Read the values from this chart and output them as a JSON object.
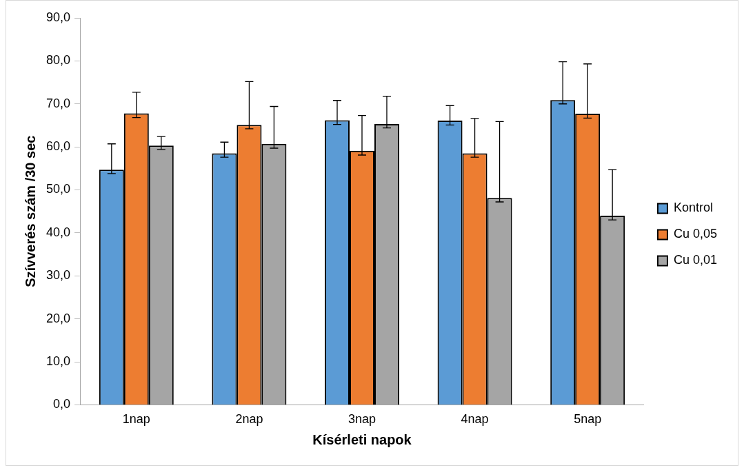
{
  "chart_data": {
    "type": "bar",
    "xlabel": "Kísérleti napok",
    "ylabel": "Szívverés szám /30 sec",
    "categories": [
      "1nap",
      "2nap",
      "3nap",
      "4nap",
      "5nap"
    ],
    "series": [
      {
        "name": "Kontrol",
        "color": "#5b9bd5",
        "values": [
          54.7,
          58.5,
          66.2,
          66.1,
          70.9
        ],
        "errors": [
          [
            53.8,
            60.7
          ],
          [
            57.6,
            61.1
          ],
          [
            65.2,
            70.8
          ],
          [
            65.1,
            69.6
          ],
          [
            70.0,
            79.8
          ]
        ]
      },
      {
        "name": "Cu 0,05",
        "color": "#ed7d31",
        "values": [
          67.8,
          65.1,
          59.1,
          58.5,
          67.7
        ],
        "errors": [
          [
            66.8,
            72.7
          ],
          [
            64.2,
            75.2
          ],
          [
            58.1,
            67.3
          ],
          [
            57.6,
            66.6
          ],
          [
            66.7,
            79.3
          ]
        ]
      },
      {
        "name": "Cu 0,01",
        "color": "#a5a5a5",
        "values": [
          60.3,
          60.7,
          65.3,
          48.1,
          44.0
        ],
        "errors": [
          [
            59.4,
            62.4
          ],
          [
            59.7,
            69.4
          ],
          [
            64.4,
            71.8
          ],
          [
            47.2,
            65.9
          ],
          [
            43.0,
            54.7
          ]
        ]
      }
    ],
    "ylim": [
      0,
      90
    ],
    "yticks": [
      {
        "value": 0,
        "label": "0,0"
      },
      {
        "value": 10,
        "label": "10,0"
      },
      {
        "value": 20,
        "label": "20,0"
      },
      {
        "value": 30,
        "label": "30,0"
      },
      {
        "value": 40,
        "label": "40,0"
      },
      {
        "value": 50,
        "label": "50,0"
      },
      {
        "value": 60,
        "label": "60,0"
      },
      {
        "value": 70,
        "label": "70,0"
      },
      {
        "value": 80,
        "label": "80,0"
      },
      {
        "value": 90,
        "label": "90,0"
      }
    ],
    "grid": false,
    "legend": "right"
  }
}
